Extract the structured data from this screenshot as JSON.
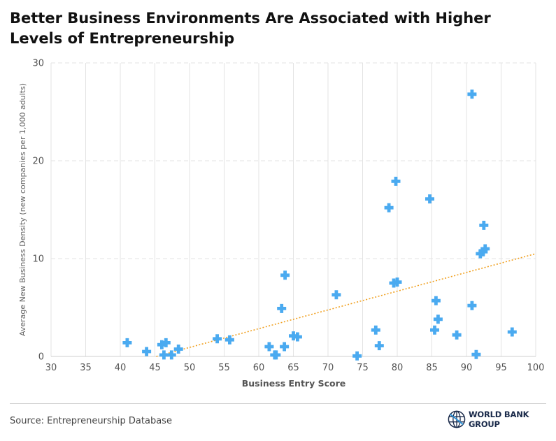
{
  "title": "Better Business Environments Are Associated with Higher Levels of Entrepreneurship",
  "footer": {
    "source": "Source: Entrepreneurship Database",
    "logo_text": "WORLD BANK GROUP"
  },
  "colors": {
    "marker": "#4aaaf0",
    "trend": "#f0a020",
    "grid": "#e3e3e3",
    "axis_text": "#555555"
  },
  "chart_data": {
    "type": "scatter",
    "xlabel": "Business Entry Score",
    "ylabel": "Average New Business Density (new companies per 1,000 adults)",
    "xlim": [
      30,
      100
    ],
    "ylim": [
      0,
      30
    ],
    "x_ticks": [
      30,
      35,
      40,
      45,
      50,
      55,
      60,
      65,
      70,
      75,
      80,
      85,
      90,
      95,
      100
    ],
    "y_ticks": [
      0,
      10,
      20,
      30
    ],
    "grid": true,
    "marker": "plus",
    "trendline": {
      "style": "dotted",
      "x": [
        45.2,
        100
      ],
      "y": [
        0.0,
        10.5
      ]
    },
    "points": [
      {
        "x": 41.0,
        "y": 1.4
      },
      {
        "x": 43.8,
        "y": 0.5
      },
      {
        "x": 46.0,
        "y": 1.2
      },
      {
        "x": 46.3,
        "y": 0.15
      },
      {
        "x": 46.6,
        "y": 1.4
      },
      {
        "x": 47.4,
        "y": 0.15
      },
      {
        "x": 48.4,
        "y": 0.75
      },
      {
        "x": 54.0,
        "y": 1.8
      },
      {
        "x": 55.8,
        "y": 1.7
      },
      {
        "x": 61.5,
        "y": 1.0
      },
      {
        "x": 62.3,
        "y": 0.15
      },
      {
        "x": 62.5,
        "y": 0.15
      },
      {
        "x": 63.3,
        "y": 4.9
      },
      {
        "x": 63.7,
        "y": 1.0
      },
      {
        "x": 63.8,
        "y": 8.3
      },
      {
        "x": 65.0,
        "y": 2.1
      },
      {
        "x": 65.6,
        "y": 2.0
      },
      {
        "x": 71.2,
        "y": 6.3
      },
      {
        "x": 74.2,
        "y": 0.05
      },
      {
        "x": 76.9,
        "y": 2.7
      },
      {
        "x": 77.4,
        "y": 1.1
      },
      {
        "x": 78.8,
        "y": 15.2
      },
      {
        "x": 79.5,
        "y": 7.5
      },
      {
        "x": 79.8,
        "y": 17.9
      },
      {
        "x": 80.0,
        "y": 7.6
      },
      {
        "x": 84.7,
        "y": 16.1
      },
      {
        "x": 85.4,
        "y": 2.7
      },
      {
        "x": 85.6,
        "y": 5.7
      },
      {
        "x": 85.9,
        "y": 3.8
      },
      {
        "x": 88.6,
        "y": 2.2
      },
      {
        "x": 90.8,
        "y": 5.2
      },
      {
        "x": 90.8,
        "y": 26.8
      },
      {
        "x": 91.4,
        "y": 0.2
      },
      {
        "x": 92.0,
        "y": 10.5
      },
      {
        "x": 92.4,
        "y": 10.7
      },
      {
        "x": 92.5,
        "y": 13.4
      },
      {
        "x": 92.7,
        "y": 11.0
      },
      {
        "x": 96.6,
        "y": 2.5
      }
    ]
  }
}
